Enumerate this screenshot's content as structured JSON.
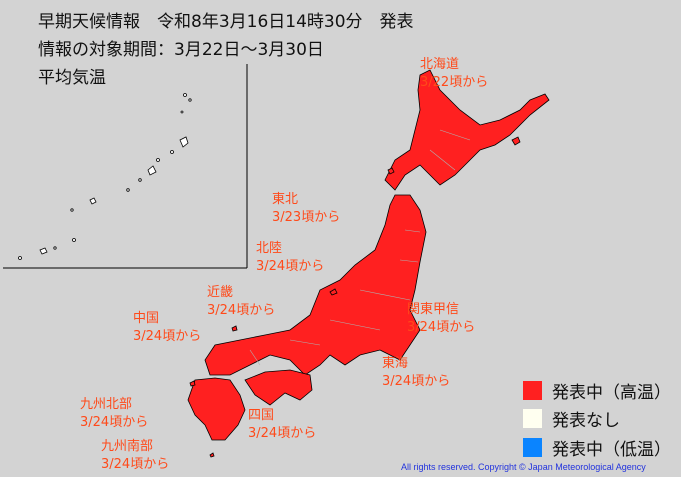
{
  "header": {
    "line1": "早期天候情報　令和8年3月16日14時30分　発表",
    "line2": "情報の対象期間：3月22日～3月30日",
    "element": "平均気温"
  },
  "regions": [
    {
      "name": "北海道",
      "from": "3/22頃から"
    },
    {
      "name": "東北",
      "from": "3/23頃から"
    },
    {
      "name": "北陸",
      "from": "3/24頃から"
    },
    {
      "name": "近畿",
      "from": "3/24頃から"
    },
    {
      "name": "中国",
      "from": "3/24頃から"
    },
    {
      "name": "関東甲信",
      "from": "3/24頃から"
    },
    {
      "name": "東海",
      "from": "3/24頃から"
    },
    {
      "name": "九州北部",
      "from": "3/24頃から"
    },
    {
      "name": "四国",
      "from": "3/24頃から"
    },
    {
      "name": "九州南部",
      "from": "3/24頃から"
    }
  ],
  "legend": [
    {
      "label": "発表中（高温）",
      "color": "#ff2020"
    },
    {
      "label": "発表なし",
      "color": "#fffff0"
    },
    {
      "label": "発表中（低温）",
      "color": "#0a84ff"
    }
  ],
  "colors": {
    "warning_high": "#ff2020",
    "label": "#ff4a1a",
    "background": "#d3d3d3"
  },
  "copyright": "All rights reserved. Copyright © Japan Meteorological Agency"
}
